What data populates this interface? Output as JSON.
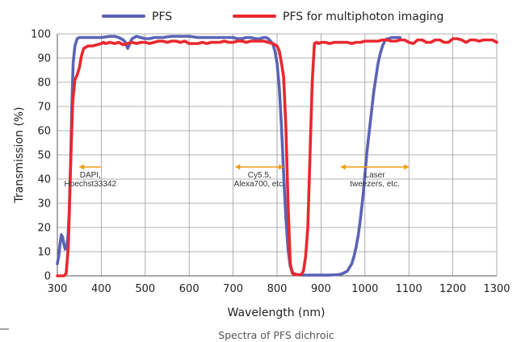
{
  "chart_data": {
    "type": "line",
    "xlabel": "Wavelength (nm)",
    "ylabel": "Transmission (%)",
    "xlim": [
      300,
      1300
    ],
    "ylim": [
      0,
      100
    ],
    "x_ticks": [
      300,
      400,
      500,
      600,
      700,
      800,
      900,
      1000,
      1100,
      1200,
      1300
    ],
    "y_ticks": [
      0,
      10,
      20,
      30,
      40,
      50,
      60,
      70,
      80,
      90,
      100
    ],
    "grid": true,
    "legend_position": "top",
    "caption": "Spectra of PFS dichroic",
    "series": [
      {
        "name": "PFS",
        "color": "#5b63b5",
        "x": [
          300,
          303,
          306,
          309,
          312,
          315,
          318,
          321,
          324,
          327,
          330,
          333,
          336,
          340,
          345,
          350,
          360,
          380,
          400,
          420,
          430,
          440,
          450,
          455,
          460,
          465,
          470,
          480,
          490,
          500,
          510,
          520,
          540,
          560,
          580,
          600,
          620,
          640,
          660,
          680,
          700,
          710,
          720,
          730,
          740,
          750,
          760,
          770,
          775,
          780,
          785,
          790,
          795,
          800,
          805,
          810,
          815,
          820,
          825,
          830,
          835,
          840,
          845,
          850,
          860,
          870,
          880,
          900,
          920,
          940,
          950,
          960,
          965,
          970,
          975,
          980,
          985,
          990,
          995,
          1000,
          1005,
          1010,
          1015,
          1020,
          1025,
          1030,
          1035,
          1040,
          1045,
          1050,
          1055,
          1060,
          1070,
          1080
        ],
        "y": [
          5,
          8,
          13,
          17,
          16,
          13,
          11,
          12,
          16,
          26,
          45,
          70,
          88,
          95,
          98,
          98.5,
          98.5,
          98.5,
          98.5,
          99,
          99,
          98.5,
          97.5,
          96.5,
          94,
          96,
          98,
          99,
          98.5,
          98,
          98,
          98.5,
          98.5,
          99,
          99,
          99,
          98.5,
          98.5,
          98.5,
          98.5,
          98.5,
          98,
          98,
          98.5,
          98.5,
          98,
          98,
          98.5,
          98.5,
          98,
          97,
          96,
          93,
          88,
          78,
          62,
          42,
          24,
          11,
          4,
          1.5,
          0.8,
          0.5,
          0.4,
          0.3,
          0.3,
          0.3,
          0.3,
          0.3,
          0.5,
          1,
          2,
          3.5,
          5,
          8,
          12,
          17,
          24,
          32,
          42,
          52,
          60,
          68,
          76,
          82,
          88,
          92,
          95,
          97,
          98,
          98,
          98.5,
          98.5,
          98.5
        ]
      },
      {
        "name": "PFS for multiphoton imaging",
        "color": "#e8282e",
        "x": [
          300,
          305,
          310,
          315,
          320,
          325,
          330,
          335,
          340,
          345,
          350,
          355,
          360,
          370,
          380,
          390,
          400,
          405,
          410,
          420,
          430,
          440,
          450,
          460,
          470,
          480,
          490,
          500,
          510,
          520,
          530,
          540,
          550,
          560,
          570,
          580,
          590,
          600,
          610,
          620,
          630,
          640,
          650,
          660,
          670,
          680,
          690,
          700,
          710,
          720,
          730,
          740,
          750,
          760,
          770,
          780,
          790,
          800,
          805,
          810,
          815,
          820,
          825,
          830,
          835,
          840,
          845,
          850,
          855,
          860,
          865,
          870,
          875,
          880,
          885,
          890,
          895,
          900,
          910,
          920,
          930,
          940,
          950,
          960,
          970,
          980,
          990,
          1000,
          1010,
          1020,
          1030,
          1040,
          1050,
          1060,
          1070,
          1080,
          1090,
          1100,
          1110,
          1120,
          1130,
          1140,
          1150,
          1160,
          1170,
          1180,
          1190,
          1200,
          1210,
          1220,
          1230,
          1240,
          1250,
          1260,
          1270,
          1280,
          1290,
          1300
        ],
        "y": [
          0,
          0,
          0,
          0,
          1,
          12,
          45,
          72,
          81,
          83,
          86,
          91,
          94,
          95,
          95,
          95.5,
          96,
          96.5,
          96,
          96.5,
          96,
          96.5,
          95.5,
          96,
          96.5,
          96,
          96.5,
          96.5,
          96,
          96.5,
          97,
          97,
          96.5,
          97,
          97,
          96.5,
          97,
          96,
          96,
          96,
          96.5,
          96,
          96.5,
          96.5,
          96.5,
          97,
          96.5,
          96.5,
          97,
          97,
          96.5,
          97,
          97,
          97,
          97,
          96.5,
          96,
          95,
          93,
          88,
          82,
          62,
          30,
          5,
          1,
          0.5,
          0.5,
          0.5,
          0.5,
          2,
          8,
          20,
          50,
          80,
          96,
          96.5,
          96,
          96.5,
          96.5,
          96,
          96.5,
          96.5,
          96.5,
          96.5,
          96,
          96.5,
          96.5,
          97,
          97,
          97,
          97,
          97.5,
          97.5,
          97,
          97,
          97.5,
          97.5,
          96.5,
          96,
          97.5,
          97.5,
          96.5,
          96.5,
          97.5,
          97.5,
          96.5,
          96.5,
          98,
          98,
          97.5,
          96.5,
          97.5,
          97.5,
          97,
          97.5,
          97.5,
          97.5,
          96.5
        ]
      }
    ],
    "annotations": [
      {
        "id": "dapi",
        "lines": [
          "DAPI,",
          "Hoechst33342"
        ],
        "arrow_from_x": 350,
        "arrow_to_x": 400,
        "arrow_y": 45,
        "arrow_head": "left",
        "color": "#f39c12"
      },
      {
        "id": "cy55",
        "lines": [
          "Cy5.5,",
          "Alexa700, etc."
        ],
        "arrow_from_x": 705,
        "arrow_to_x": 815,
        "arrow_y": 45,
        "arrow_head": "both",
        "color": "#f39c12"
      },
      {
        "id": "laser",
        "lines": [
          "Laser",
          "tweezers, etc."
        ],
        "arrow_from_x": 945,
        "arrow_to_x": 1100,
        "arrow_y": 45,
        "arrow_head": "both",
        "color": "#f39c12"
      }
    ]
  }
}
